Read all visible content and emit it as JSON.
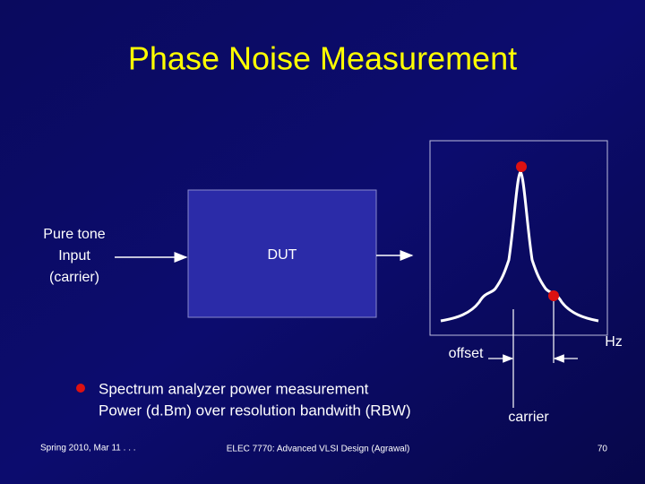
{
  "title": "Phase Noise Measurement",
  "input_label": [
    "Pure tone",
    "Input",
    "(carrier)"
  ],
  "dut_label": "DUT",
  "spectrum": {
    "offset_label": "offset",
    "unit_label": "Hz",
    "carrier_label": "carrier"
  },
  "bullet": [
    "Spectrum analyzer power measurement",
    "Power (d.Bm) over resolution bandwith (RBW)"
  ],
  "footer": {
    "left": "Spring 2010, Mar 11 . . .",
    "center": "ELEC 7770: Advanced VLSI Design (Agrawal)",
    "right": "70"
  }
}
